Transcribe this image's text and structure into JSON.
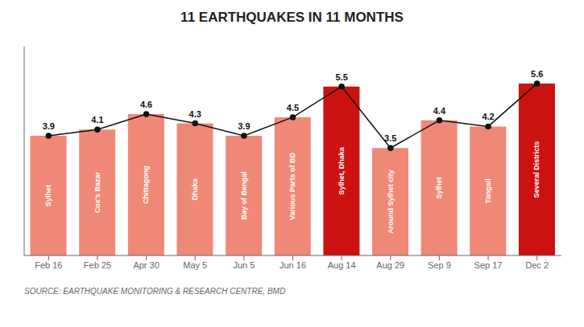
{
  "chart_data": {
    "type": "bar",
    "title": "11 EARTHQUAKES IN 11 MONTHS",
    "source": "SOURCE: EARTHQUAKE MONITORING & RESEARCH CENTRE, BMD",
    "categories": [
      "Feb 16",
      "Feb 25",
      "Apr 30",
      "May 5",
      "Jun 5",
      "Jun 16",
      "Aug 14",
      "Aug 29",
      "Sep 9",
      "Sep 17",
      "Dec 2"
    ],
    "annotations": [
      "Sylhet",
      "Cox's Bazar",
      "Chittagong",
      "Dhaka",
      "Bay of Bengal",
      "Various Parts of BD",
      "Sylhet, Dhaka",
      "Around Sylhet city",
      "Sylhet",
      "Tangail",
      "Several Districts"
    ],
    "series": [
      {
        "type": "bar",
        "colors": [
          "#f08878",
          "#f08878",
          "#f08878",
          "#f08878",
          "#f08878",
          "#f08878",
          "#cc1111",
          "#f08878",
          "#f08878",
          "#f08878",
          "#cc1111"
        ],
        "values": [
          3.9,
          4.1,
          4.6,
          4.3,
          3.9,
          4.5,
          5.5,
          3.5,
          4.4,
          4.2,
          5.6
        ]
      },
      {
        "type": "line",
        "color": "#111111",
        "marker": "circle",
        "values": [
          3.9,
          4.1,
          4.6,
          4.3,
          3.9,
          4.5,
          5.5,
          3.5,
          4.4,
          4.2,
          5.6
        ]
      }
    ],
    "ylim": [
      0,
      6.8
    ],
    "data_labels": true,
    "tick_labels": "x",
    "grid": false
  }
}
